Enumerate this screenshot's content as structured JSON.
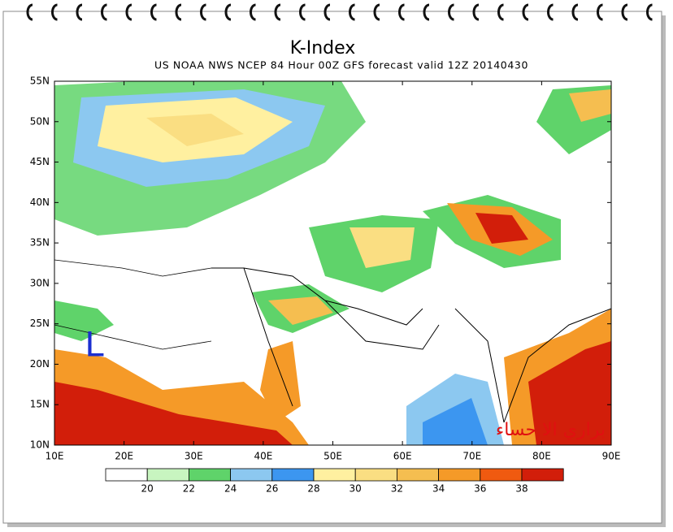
{
  "title": "K-Index",
  "subtitle": "US NOAA NWS NCEP 84 Hour 00Z GFS forecast valid 12Z 20140430",
  "lat_labels": [
    "55N",
    "50N",
    "45N",
    "40N",
    "35N",
    "30N",
    "25N",
    "20N",
    "15N",
    "10N"
  ],
  "lon_labels": [
    "10E",
    "20E",
    "30E",
    "40E",
    "50E",
    "60E",
    "70E",
    "80E",
    "90E"
  ],
  "colorbar": {
    "colors": [
      "#ffffff",
      "#c8f5c0",
      "#5fd36a",
      "#8cc8f0",
      "#3c96f0",
      "#fff0a0",
      "#fade82",
      "#f5be50",
      "#f59a28",
      "#f05a10",
      "#d21e0a"
    ],
    "labels": [
      20,
      22,
      24,
      26,
      28,
      30,
      32,
      34,
      36,
      38
    ]
  },
  "low_marker": "L",
  "watermark": "براري الا حساء"
}
